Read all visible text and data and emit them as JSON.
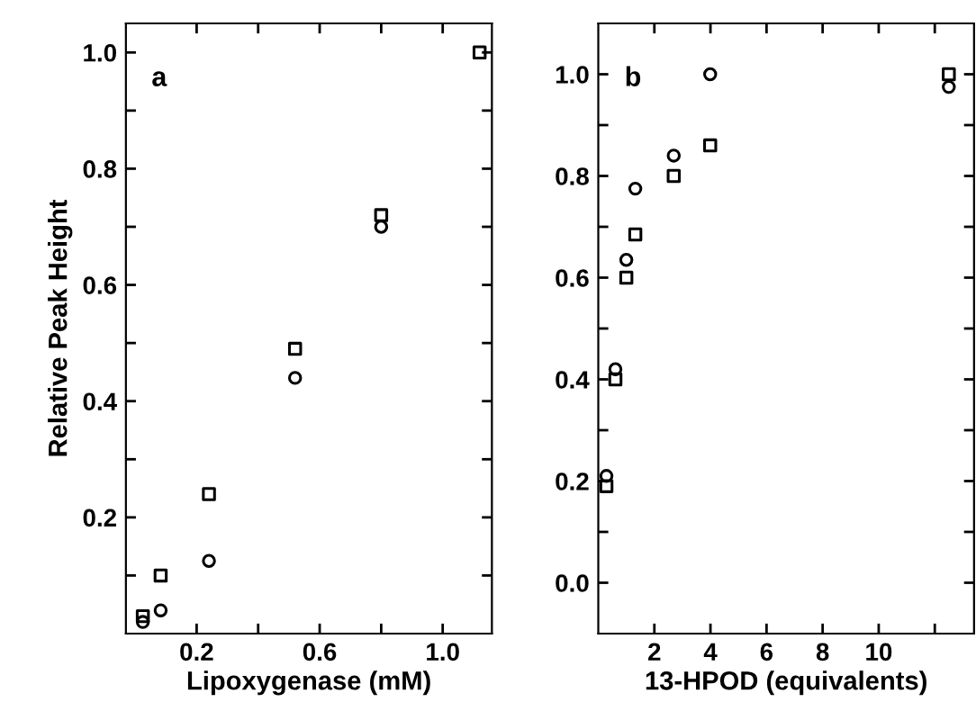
{
  "chart_data": [
    {
      "type": "scatter",
      "xlabel": "Lipoxygenase (mM)",
      "ylabel": "Relative Peak Height",
      "annotations": [
        "a"
      ],
      "xlim": [
        -0.03,
        1.16
      ],
      "ylim": [
        0,
        1.05
      ],
      "xticks": [
        0.2,
        {
          "value": 0.4,
          "label": null
        },
        0.6,
        {
          "value": 0.8,
          "label": null
        },
        {
          "value": 1.0,
          "label": "1.0"
        }
      ],
      "yticks": [
        {
          "value": 0.1,
          "label": null
        },
        0.2,
        {
          "value": 0.3,
          "label": null
        },
        0.4,
        {
          "value": 0.5,
          "label": null
        },
        0.6,
        {
          "value": 0.7,
          "label": null
        },
        0.8,
        {
          "value": 0.9,
          "label": null
        },
        {
          "value": 1.0,
          "label": "1.0"
        }
      ],
      "grid": false,
      "legend": false,
      "series": [
        {
          "color": "#000000",
          "marker": "square",
          "x": [
            0.025,
            0.083,
            0.24,
            0.52,
            0.8,
            1.12
          ],
          "values": [
            0.03,
            0.1,
            0.24,
            0.49,
            0.72,
            1.0
          ]
        },
        {
          "color": "#000000",
          "marker": "circle",
          "x": [
            0.025,
            0.083,
            0.24,
            0.52,
            0.8
          ],
          "values": [
            0.02,
            0.04,
            0.125,
            0.44,
            0.7
          ]
        }
      ]
    },
    {
      "type": "scatter",
      "xlabel": "13-HPOD (equivalents)",
      "annotations": [
        "b"
      ],
      "xlim": [
        0,
        13.4
      ],
      "ylim": [
        -0.1,
        1.1
      ],
      "xticks": [
        2,
        4,
        6,
        8,
        10,
        {
          "value": 12,
          "label": null
        }
      ],
      "yticks": [
        {
          "value": 0.0,
          "label": "0.0"
        },
        {
          "value": 0.1,
          "label": null
        },
        0.2,
        {
          "value": 0.3,
          "label": null
        },
        0.4,
        {
          "value": 0.5,
          "label": null
        },
        0.6,
        {
          "value": 0.7,
          "label": null
        },
        0.8,
        {
          "value": 0.9,
          "label": null
        },
        {
          "value": 1.0,
          "label": "1.0"
        }
      ],
      "grid": false,
      "legend": false,
      "series": [
        {
          "color": "#000000",
          "marker": "square",
          "x": [
            0.29,
            0.61,
            1.0,
            1.32,
            2.69,
            3.99,
            12.5
          ],
          "values": [
            0.19,
            0.4,
            0.6,
            0.685,
            0.8,
            0.86,
            1.0
          ]
        },
        {
          "color": "#000000",
          "marker": "circle",
          "x": [
            0.29,
            0.61,
            1.0,
            1.32,
            2.69,
            3.99,
            12.5
          ],
          "values": [
            0.21,
            0.42,
            0.635,
            0.775,
            0.84,
            1.0,
            0.975
          ]
        }
      ]
    }
  ]
}
